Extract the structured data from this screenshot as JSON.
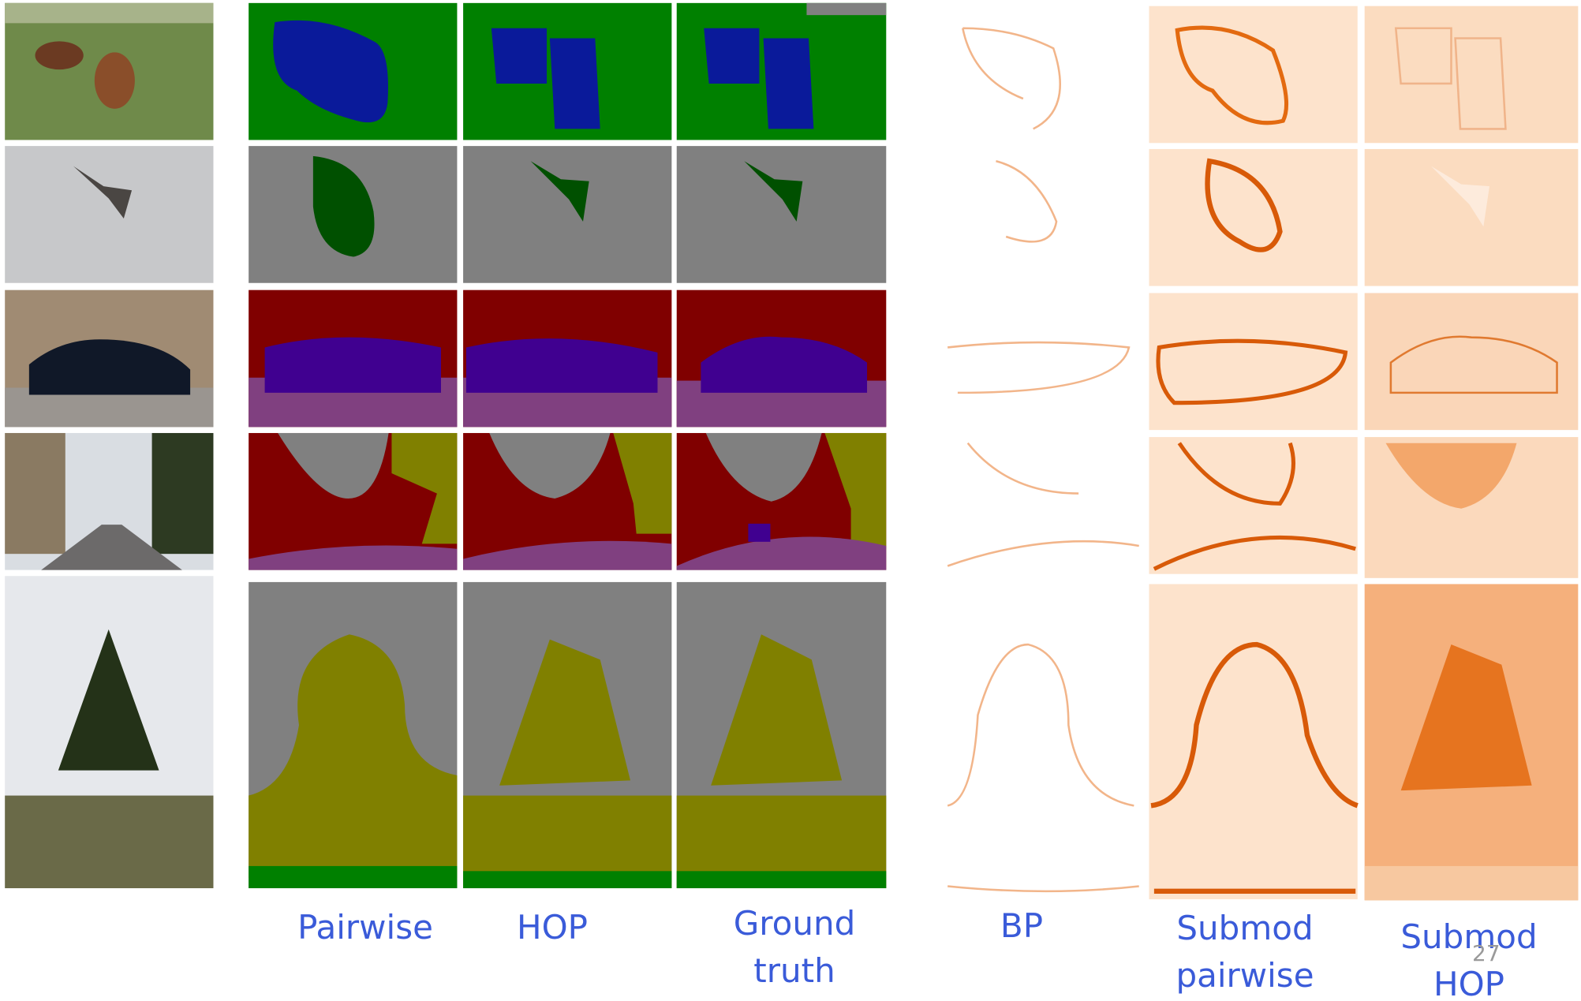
{
  "columns": [
    "Pairwise",
    "HOP",
    "Ground truth",
    "BP",
    "Submod pairwise",
    "Submod HOP"
  ],
  "page_number": "27"
}
